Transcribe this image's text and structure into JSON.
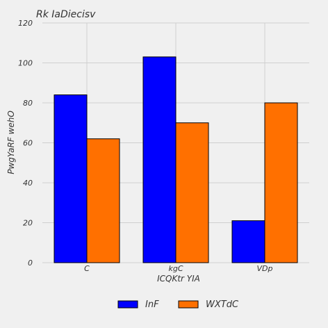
{
  "chart_data": {
    "type": "bar",
    "title": "Rk IaDiecisv",
    "xlabel": "ICQKtr YIA",
    "ylabel": "PwgYaRF wehO",
    "categories": [
      "C",
      "kgC",
      "VDp"
    ],
    "series": [
      {
        "name": "InF",
        "values": [
          84,
          103,
          21
        ],
        "color": "#0000ff"
      },
      {
        "name": "WXTdC",
        "values": [
          62,
          70,
          80
        ],
        "color": "#ff7000"
      }
    ],
    "ylim": [
      0,
      120
    ],
    "yticks": [
      0,
      20,
      40,
      60,
      80,
      100,
      120
    ],
    "grid": true,
    "legend_position": "bottom-center"
  }
}
